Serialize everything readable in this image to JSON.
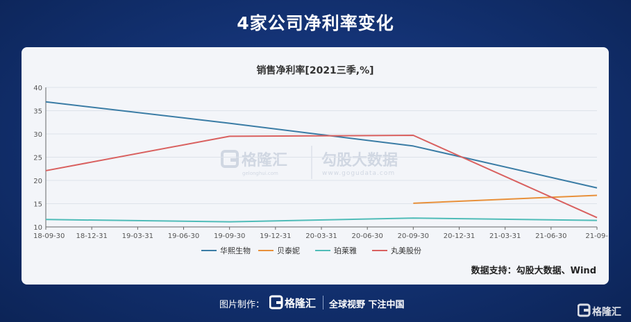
{
  "page": {
    "title": "4家公司净利率变化",
    "source": "数据支持：勾股大数据、Wind",
    "footer_label": "图片制作：",
    "footer_slogan": "全球视野 下注中国"
  },
  "watermark": {
    "brand_cn": "格隆汇",
    "brand_site": "gelonghui.com",
    "partner_cn": "勾股大数据",
    "partner_site": "www.gogudata.com"
  },
  "colors": {
    "华熙生物": "#3a7ca5",
    "贝泰妮": "#e8903a",
    "珀莱雅": "#4fbcb8",
    "丸美股份": "#d9605f"
  },
  "chart_data": {
    "type": "line",
    "title": "销售净利率[2021三季,%]",
    "x": [
      "18-09-30",
      "18-12-31",
      "19-03-31",
      "19-06-30",
      "19-09-30",
      "19-12-31",
      "20-03-31",
      "20-06-30",
      "20-09-30",
      "20-12-31",
      "21-03-31",
      "21-06-30",
      "21-09-"
    ],
    "ylim": [
      10,
      40
    ],
    "yticks": [
      10,
      15,
      20,
      25,
      30,
      35,
      40
    ],
    "grid": true,
    "legend_position": "bottom",
    "series": [
      {
        "name": "华熙生物",
        "points": [
          [
            "18-09-30",
            36.9
          ],
          [
            "19-09-30",
            32.3
          ],
          [
            "20-09-30",
            27.4
          ],
          [
            "21-09-",
            18.4
          ]
        ]
      },
      {
        "name": "贝泰妮",
        "points": [
          [
            "20-09-30",
            15.1
          ],
          [
            "21-09-",
            16.8
          ]
        ]
      },
      {
        "name": "珀莱雅",
        "points": [
          [
            "18-09-30",
            11.6
          ],
          [
            "19-09-30",
            11.1
          ],
          [
            "20-09-30",
            11.9
          ],
          [
            "21-09-",
            11.4
          ]
        ]
      },
      {
        "name": "丸美股份",
        "points": [
          [
            "18-09-30",
            22.1
          ],
          [
            "19-09-30",
            29.5
          ],
          [
            "20-09-30",
            29.7
          ],
          [
            "21-09-",
            12.0
          ]
        ]
      }
    ]
  }
}
